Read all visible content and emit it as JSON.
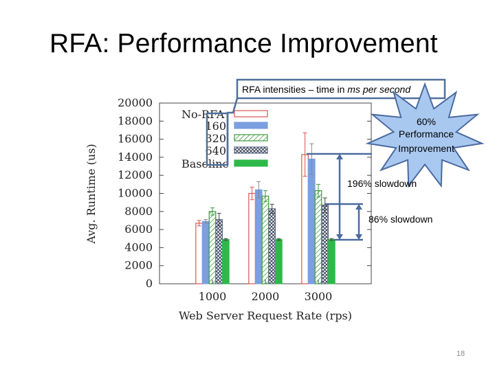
{
  "slide": {
    "title": "RFA: Performance Improvement",
    "page_number": "18"
  },
  "colors": {
    "no_rfa": "#d9534f",
    "rfa_160": "#7b9fe0",
    "rfa_320": "#3c9a3c",
    "rfa_640": "#5a6b8a",
    "baseline": "#2fb84a",
    "arrow": "#4a6aa0",
    "star_fill": "#a9c8ef",
    "callout_border": "#4f6f9a"
  },
  "callouts": {
    "intensities_prefix": "RFA intensities – time in ",
    "intensities_italic": "ms per second",
    "star_line1": "60%",
    "star_line2": "Performance",
    "star_line3": "Improvement",
    "slowdown_196": "196% slowdown",
    "slowdown_86": "86% slowdown"
  },
  "chart_data": {
    "type": "bar",
    "xlabel": "Web Server Request Rate (rps)",
    "ylabel": "Avg. Runtime (us)",
    "ylim": [
      0,
      20000
    ],
    "yticks": [
      "0",
      "2000",
      "4000",
      "6000",
      "8000",
      "10000",
      "12000",
      "14000",
      "16000",
      "18000",
      "20000"
    ],
    "categories": [
      "1000",
      "2000",
      "3000"
    ],
    "legend_position": "top-left",
    "series": [
      {
        "name": "No-RFA",
        "style": "hollow",
        "values": [
          6700,
          10000,
          14300
        ],
        "errors": [
          300,
          700,
          2400
        ]
      },
      {
        "name": "160",
        "style": "solid-blue",
        "values": [
          6900,
          10400,
          13800
        ],
        "errors": [
          200,
          900,
          1700
        ]
      },
      {
        "name": "320",
        "style": "hatch",
        "values": [
          8000,
          9700,
          10300
        ],
        "errors": [
          400,
          600,
          700
        ]
      },
      {
        "name": "640",
        "style": "crosshatch",
        "values": [
          7100,
          8300,
          8700
        ],
        "errors": [
          700,
          500,
          800
        ]
      },
      {
        "name": "Baseline",
        "style": "solid-green",
        "values": [
          4900,
          4900,
          4900
        ],
        "errors": [
          100,
          100,
          100
        ]
      }
    ]
  }
}
